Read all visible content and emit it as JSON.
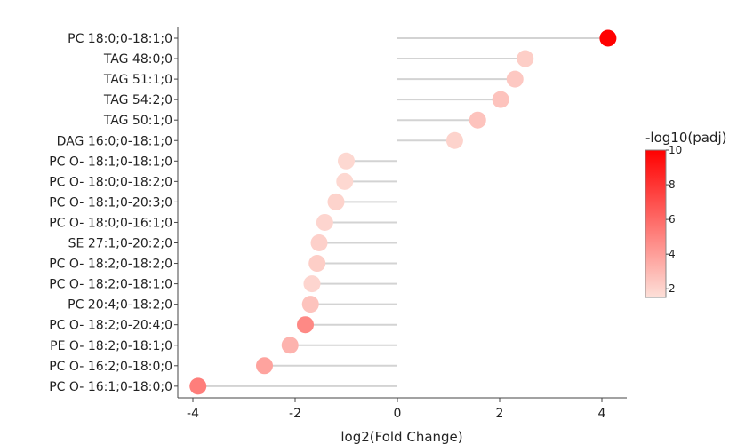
{
  "chart_data": {
    "type": "scatter",
    "subtype": "lollipop",
    "xlabel": "log2(Fold Change)",
    "ylabel": "",
    "xlim": [
      -4.2,
      4.6
    ],
    "xticks": [
      -4,
      -2,
      0,
      2,
      4
    ],
    "xtick_labels": [
      "-4",
      "-2",
      "0",
      "2",
      "4"
    ],
    "grid": false,
    "colorbar": {
      "title": "-log10(padj)",
      "range": [
        1.5,
        10
      ],
      "ticks": [
        2,
        4,
        6,
        8,
        10
      ],
      "tick_labels": [
        "2",
        "4",
        "6",
        "8",
        "10"
      ],
      "color_low": "#fde0d9",
      "color_high": "#ff0000"
    },
    "points": [
      {
        "label": "PC 18:0;0-18:1;0",
        "log2fc": 4.12,
        "neglog10padj": 10.0
      },
      {
        "label": "TAG 48:0;0",
        "log2fc": 2.5,
        "neglog10padj": 2.2
      },
      {
        "label": "TAG 51:1;0",
        "log2fc": 2.3,
        "neglog10padj": 2.4
      },
      {
        "label": "TAG 54:2;0",
        "log2fc": 2.02,
        "neglog10padj": 2.6
      },
      {
        "label": "TAG 50:1;0",
        "log2fc": 1.57,
        "neglog10padj": 2.6
      },
      {
        "label": "DAG 16:0;0-18:1;0",
        "log2fc": 1.12,
        "neglog10padj": 2.0
      },
      {
        "label": "PC O- 18:1;0-18:1;0",
        "log2fc": -1.0,
        "neglog10padj": 1.8
      },
      {
        "label": "PC O- 18:0;0-18:2;0",
        "log2fc": -1.03,
        "neglog10padj": 1.8
      },
      {
        "label": "PC O- 18:1;0-20:3;0",
        "log2fc": -1.2,
        "neglog10padj": 2.0
      },
      {
        "label": "PC O- 18:0;0-16:1;0",
        "log2fc": -1.42,
        "neglog10padj": 1.9
      },
      {
        "label": "SE 27:1;0-20:2;0",
        "log2fc": -1.53,
        "neglog10padj": 2.1
      },
      {
        "label": "PC O- 18:2;0-18:2;0",
        "log2fc": -1.57,
        "neglog10padj": 2.2
      },
      {
        "label": "PC O- 18:2;0-18:1;0",
        "log2fc": -1.67,
        "neglog10padj": 1.9
      },
      {
        "label": "PC 20:4;0-18:2;0",
        "log2fc": -1.7,
        "neglog10padj": 2.6
      },
      {
        "label": "PC O- 18:2;0-20:4;0",
        "log2fc": -1.8,
        "neglog10padj": 4.8
      },
      {
        "label": "PE O- 18:2;0-18:1;0",
        "log2fc": -2.1,
        "neglog10padj": 3.2
      },
      {
        "label": "PC O- 16:2;0-18:0;0",
        "log2fc": -2.6,
        "neglog10padj": 3.8
      },
      {
        "label": "PC O- 16:1;0-18:0;0",
        "log2fc": -3.9,
        "neglog10padj": 5.2
      }
    ]
  }
}
